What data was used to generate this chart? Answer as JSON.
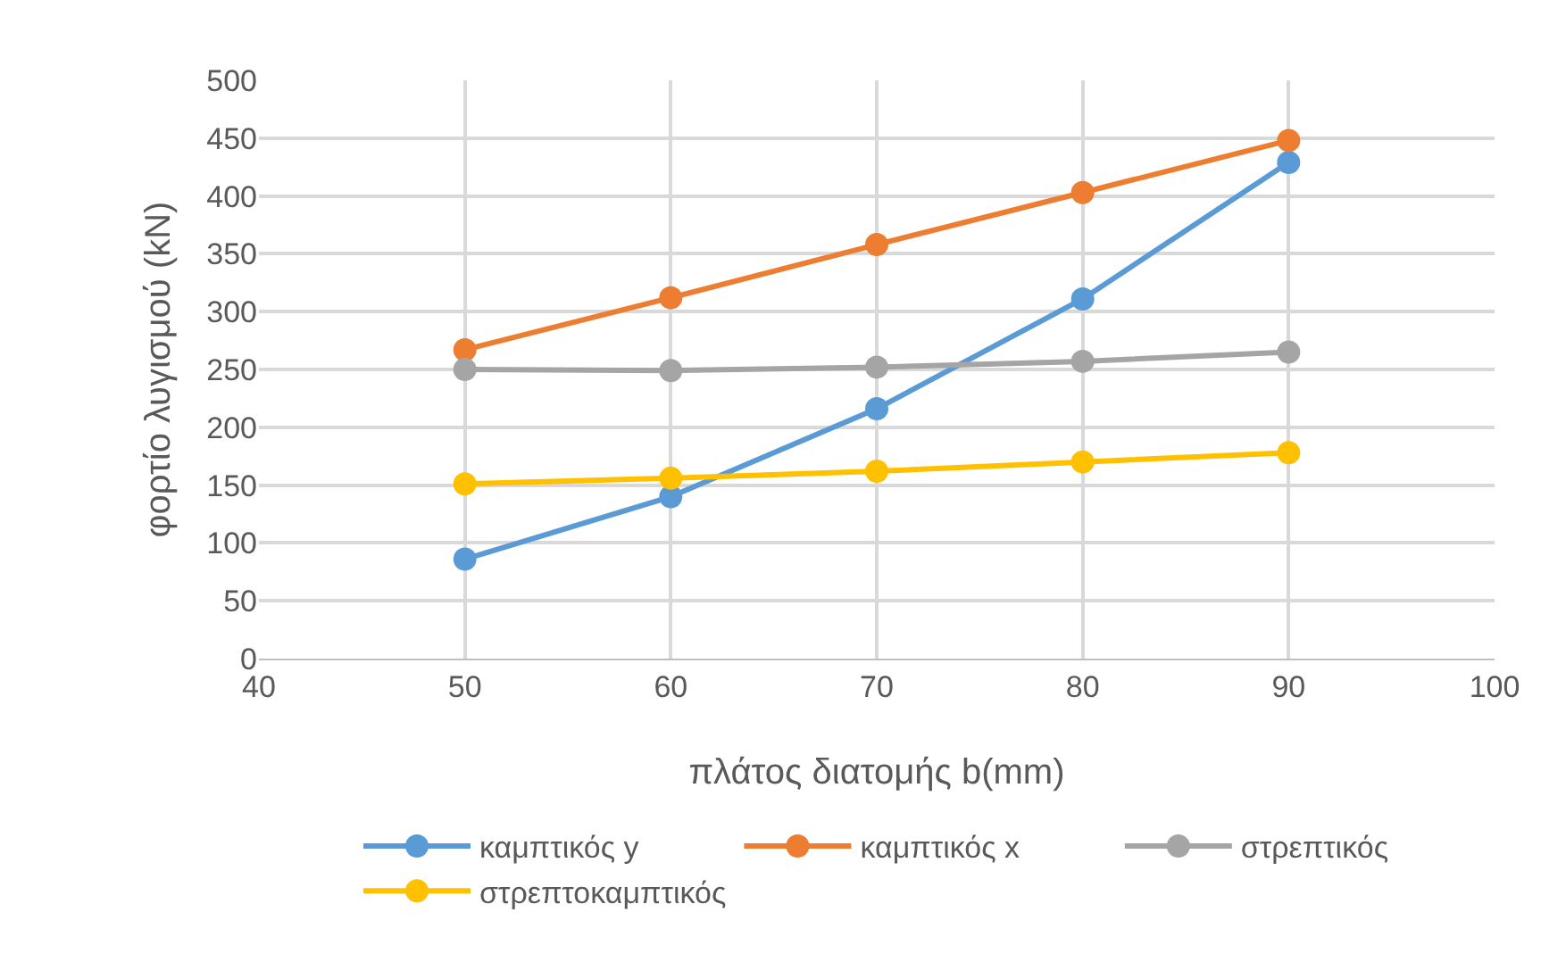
{
  "chart_data": {
    "type": "line",
    "xlabel": "πλάτος διατομής b(mm)",
    "ylabel": "φορτίο λυγισμού (kN)",
    "x": [
      50,
      60,
      70,
      80,
      90
    ],
    "series": [
      {
        "name": "καμπτικός y",
        "color": "#5b9bd5",
        "values": [
          86,
          140,
          216,
          311,
          429
        ]
      },
      {
        "name": "καμπτικός x",
        "color": "#ed7d31",
        "values": [
          267,
          312,
          358,
          403,
          448
        ]
      },
      {
        "name": "στρεπτικός",
        "color": "#a5a5a5",
        "values": [
          250,
          249,
          252,
          257,
          265
        ]
      },
      {
        "name": "στρεπτοκαμπτικός",
        "color": "#ffc000",
        "values": [
          151,
          156,
          162,
          170,
          178
        ]
      }
    ],
    "xlim": [
      40,
      100
    ],
    "xticks": [
      40,
      50,
      60,
      70,
      80,
      90,
      100
    ],
    "ylim": [
      0,
      500
    ],
    "yticks": [
      0,
      50,
      100,
      150,
      200,
      250,
      300,
      350,
      400,
      450,
      500
    ],
    "grid": true,
    "legend": "bottom",
    "marker": "circle",
    "line_style": "solid"
  }
}
